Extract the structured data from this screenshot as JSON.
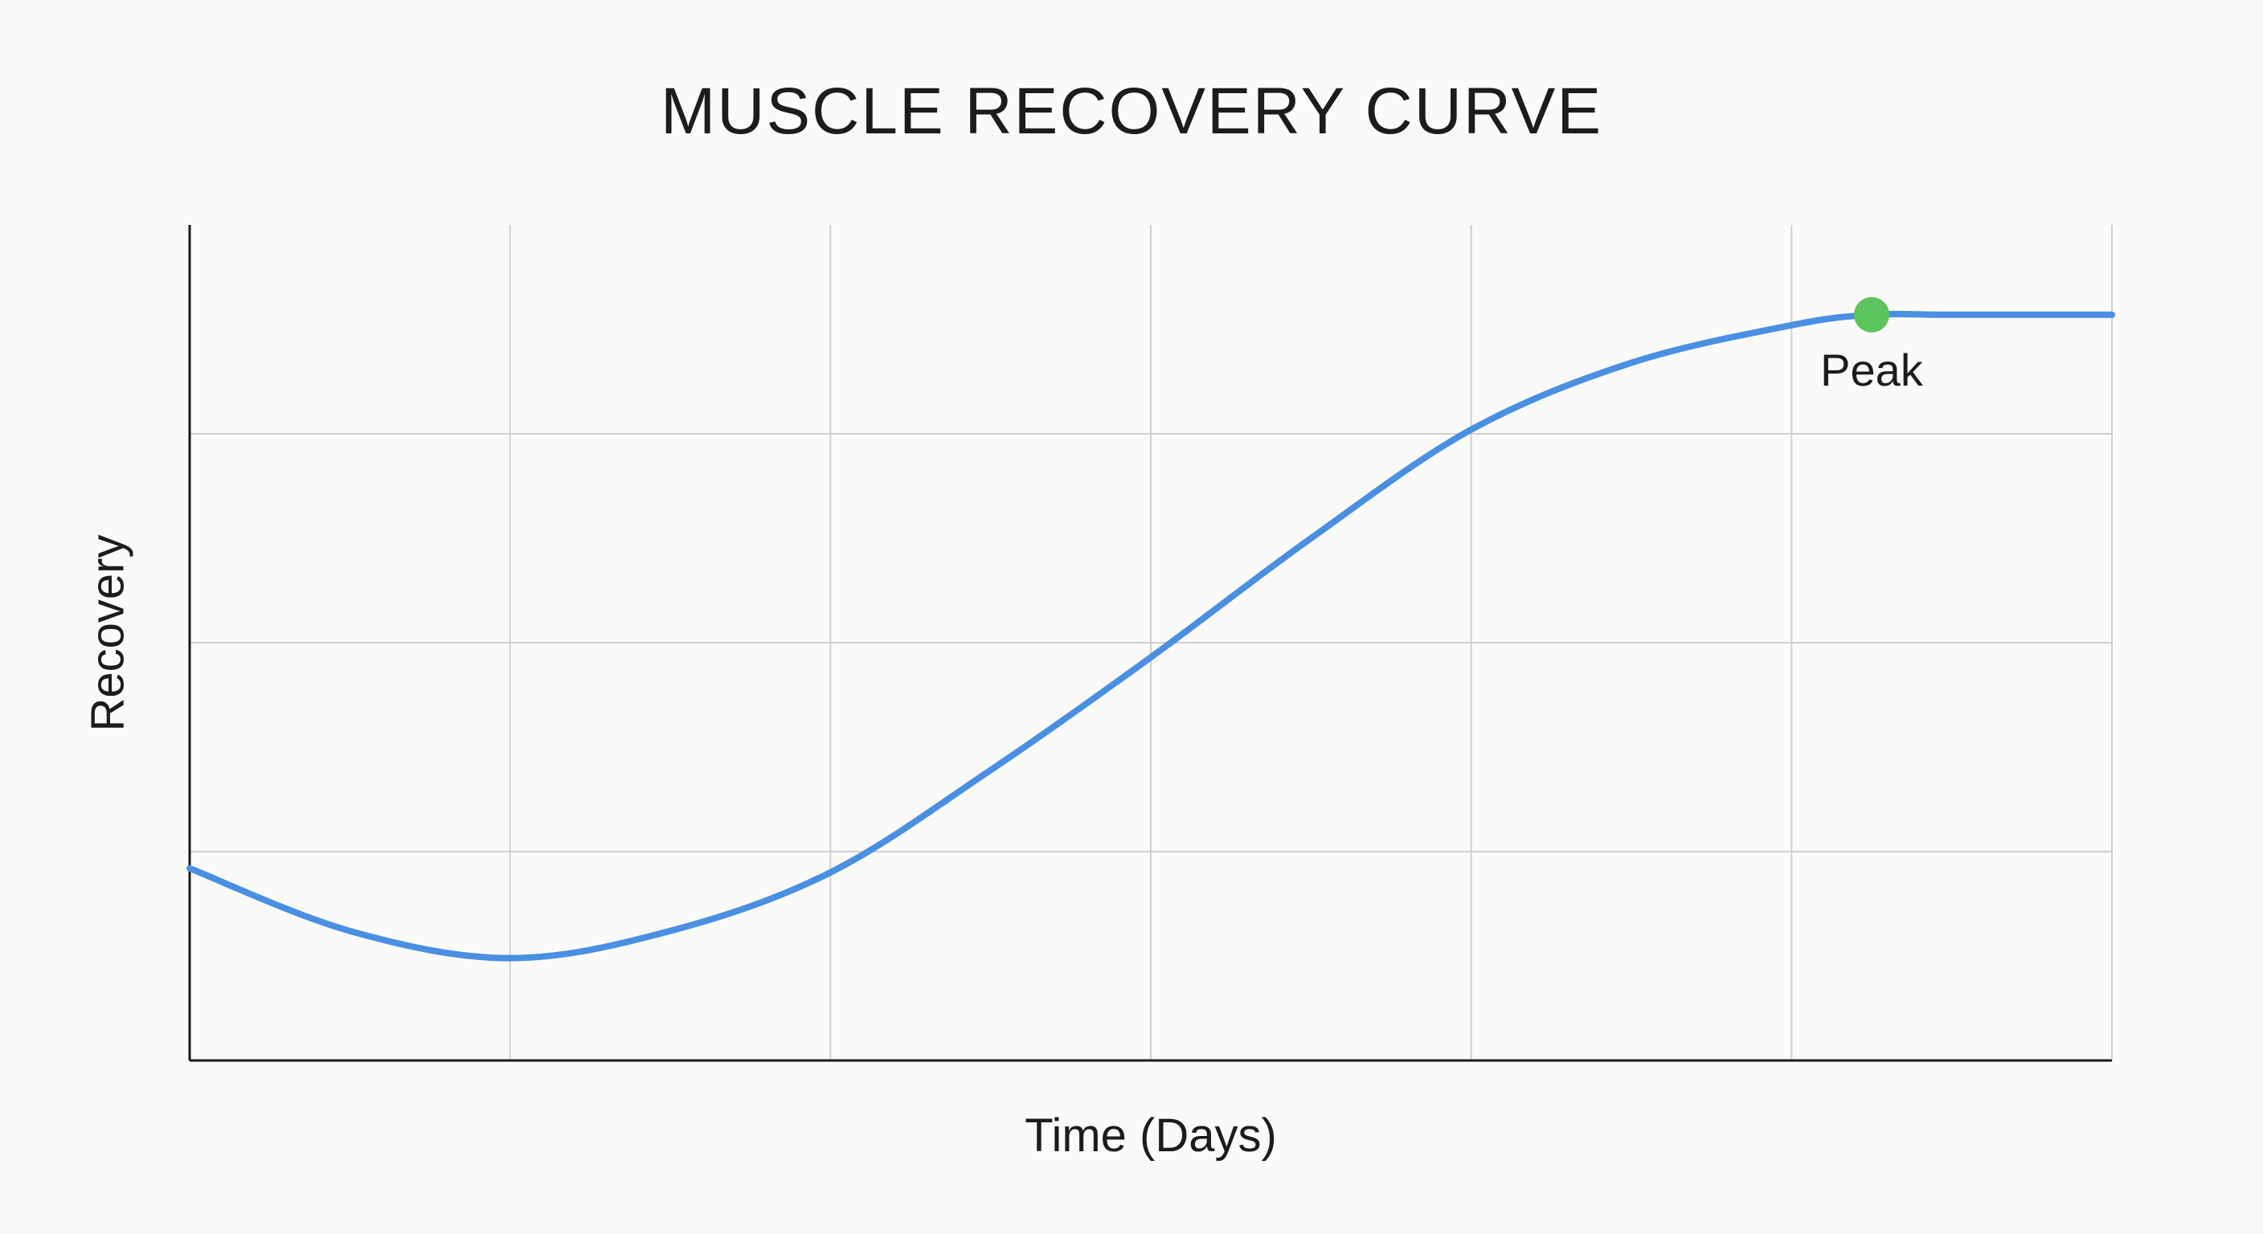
{
  "chart_data": {
    "type": "line",
    "title": "MUSCLE RECOVERY CURVE",
    "xlabel": "Time (Days)",
    "ylabel": "Recovery",
    "xlim": [
      0,
      6
    ],
    "ylim": [
      0,
      4
    ],
    "grid": true,
    "x_ticks": [
      0,
      1,
      2,
      3,
      4,
      5,
      6
    ],
    "y_ticks": [
      0,
      1,
      2,
      3,
      4
    ],
    "series": [
      {
        "color": "#4a90e2",
        "x": [
          0,
          0.5,
          1,
          1.5,
          2,
          2.5,
          3,
          3.5,
          4,
          4.5,
          5,
          5.25,
          5.5,
          6
        ],
        "y": [
          0.92,
          0.62,
          0.49,
          0.62,
          0.9,
          1.39,
          1.93,
          2.5,
          3.02,
          3.34,
          3.52,
          3.57,
          3.57,
          3.57
        ]
      }
    ],
    "annotations": [
      {
        "text": "Peak",
        "x": 5.25,
        "y": 3.57,
        "marker_color": "#5cc45c"
      }
    ]
  }
}
